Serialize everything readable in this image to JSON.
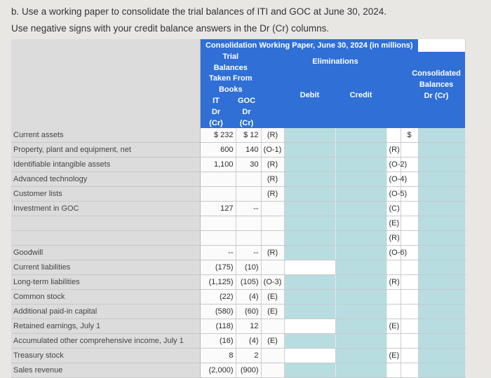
{
  "instructions": {
    "line1": "b. Use a working paper to consolidate the trial balances of ITI and GOC at June 30, 2024.",
    "line2": "Use negative signs with your credit balance answers in the Dr (Cr) columns."
  },
  "table": {
    "title": "Consolidation Working Paper, June 30, 2024 (in millions)",
    "tb_header": [
      "Trial",
      "Balances",
      "Taken From",
      "Books"
    ],
    "eliminations_label": "Eliminations",
    "iti_lines": [
      "IT",
      "Dr",
      "(Cr)"
    ],
    "goc_lines": [
      "GOC",
      "Dr",
      "(Cr)"
    ],
    "debit_label": "Debit",
    "credit_label": "Credit",
    "consolidated_lines": [
      "Consolidated",
      "Balances",
      "Dr (Cr)"
    ],
    "rows": [
      {
        "label": "Current assets",
        "iti": "$ 232",
        "goc": "$ 12",
        "ref": "(R)",
        "dref": "",
        "cref": "",
        "cons": "$",
        "tint_d": false
      },
      {
        "label": "Property, plant and equipment, net",
        "iti": "600",
        "goc": "140",
        "ref": "(O-1)",
        "dref": "",
        "cref": "(R)",
        "cons": "",
        "tint_d": false
      },
      {
        "label": "Identifiable intangible assets",
        "iti": "1,100",
        "goc": "30",
        "ref": "(R)",
        "dref": "",
        "cref": "(O-2)",
        "cons": "",
        "tint_d": false
      },
      {
        "label": "Advanced technology",
        "iti": "",
        "goc": "",
        "ref": "(R)",
        "dref": "",
        "cref": "(O-4)",
        "cons": "",
        "tint_d": false
      },
      {
        "label": "Customer lists",
        "iti": "",
        "goc": "",
        "ref": "(R)",
        "dref": "",
        "cref": "(O-5)",
        "cons": "",
        "tint_d": false
      },
      {
        "label": "Investment in GOC",
        "iti": "127",
        "goc": "--",
        "ref": "",
        "dref": "",
        "cref": "(C)",
        "cons": "",
        "tint_d": false
      },
      {
        "label": "",
        "iti": "",
        "goc": "",
        "ref": "",
        "dref": "",
        "cref": "(E)",
        "cons": "",
        "tint_d": false
      },
      {
        "label": "",
        "iti": "",
        "goc": "",
        "ref": "",
        "dref": "",
        "cref": "(R)",
        "cons": "",
        "tint_d": false
      },
      {
        "label": "Goodwill",
        "iti": "--",
        "goc": "--",
        "ref": "(R)",
        "dref": "",
        "cref": "(O-6)",
        "cons": "",
        "tint_d": false
      },
      {
        "label": "Current liabilities",
        "iti": "(175)",
        "goc": "(10)",
        "ref": "",
        "dref": "",
        "cref": "",
        "cons": "",
        "tint_d": true
      },
      {
        "label": "Long-term liabilities",
        "iti": "(1,125)",
        "goc": "(105)",
        "ref": "(O-3)",
        "dref": "",
        "cref": "(R)",
        "cons": "",
        "tint_d": false
      },
      {
        "label": "Common stock",
        "iti": "(22)",
        "goc": "(4)",
        "ref": "(E)",
        "dref": "",
        "cref": "",
        "cons": "",
        "tint_d": false
      },
      {
        "label": "Additional paid-in capital",
        "iti": "(580)",
        "goc": "(60)",
        "ref": "(E)",
        "dref": "",
        "cref": "",
        "cons": "",
        "tint_d": false
      },
      {
        "label": "Retained earnings, July 1",
        "iti": "(118)",
        "goc": "12",
        "ref": "",
        "dref": "",
        "cref": "(E)",
        "cons": "",
        "tint_d": true
      },
      {
        "label": "Accumulated other comprehensive income, July 1",
        "iti": "(16)",
        "goc": "(4)",
        "ref": "(E)",
        "dref": "",
        "cref": "",
        "cons": "",
        "tint_d": false
      },
      {
        "label": "Treasury stock",
        "iti": "8",
        "goc": "2",
        "ref": "",
        "dref": "",
        "cref": "(E)",
        "cons": "",
        "tint_d": true
      },
      {
        "label": "Sales revenue",
        "iti": "(2,000)",
        "goc": "(900)",
        "ref": "",
        "dref": "",
        "cref": "",
        "cons": "",
        "tint_d": false
      }
    ]
  },
  "colors": {
    "header_blue": "#2f6fd6",
    "teal_cell": "#b7dde1",
    "label_gray": "#dcdcdc"
  }
}
